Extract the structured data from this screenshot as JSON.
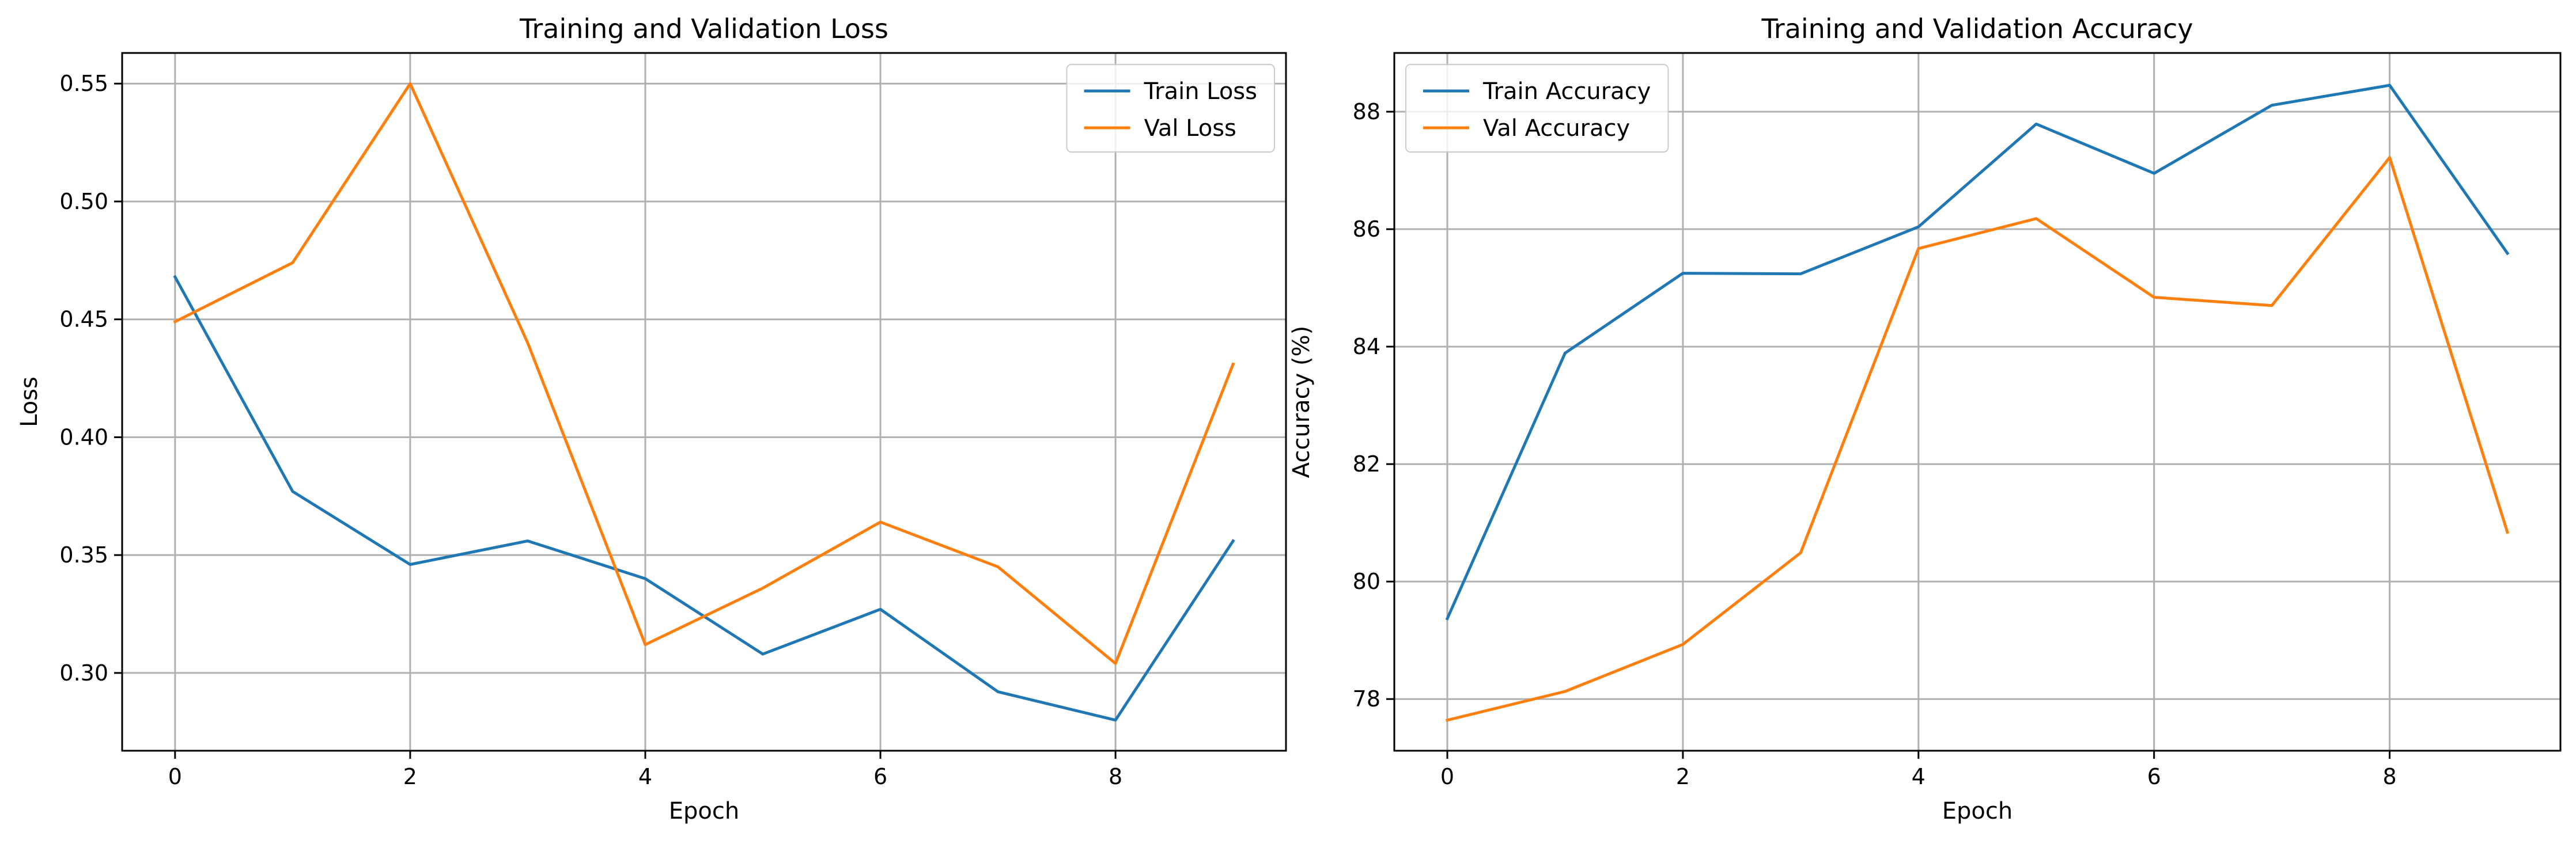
{
  "chart_data": [
    {
      "type": "line",
      "title": "Training and Validation Loss",
      "xlabel": "Epoch",
      "ylabel": "Loss",
      "x": [
        0,
        1,
        2,
        3,
        4,
        5,
        6,
        7,
        8,
        9
      ],
      "xlim": [
        -0.45,
        9.45
      ],
      "ylim": [
        0.267,
        0.563
      ],
      "xticks": [
        0,
        2,
        4,
        6,
        8
      ],
      "yticks": [
        0.3,
        0.35,
        0.4,
        0.45,
        0.5,
        0.55
      ],
      "xtick_labels": [
        "0",
        "2",
        "4",
        "6",
        "8"
      ],
      "ytick_labels": [
        "0.30",
        "0.35",
        "0.40",
        "0.45",
        "0.50",
        "0.55"
      ],
      "grid": true,
      "legend_position": "top-right",
      "series": [
        {
          "name": "Train Loss",
          "color": "#1f77b4",
          "values": [
            0.468,
            0.377,
            0.346,
            0.356,
            0.34,
            0.308,
            0.327,
            0.292,
            0.28,
            0.356
          ]
        },
        {
          "name": "Val Loss",
          "color": "#ff7f0e",
          "values": [
            0.449,
            0.474,
            0.55,
            0.44,
            0.312,
            0.336,
            0.364,
            0.345,
            0.304,
            0.431
          ]
        }
      ]
    },
    {
      "type": "line",
      "title": "Training and Validation Accuracy",
      "xlabel": "Epoch",
      "ylabel": "Accuracy (%)",
      "x": [
        0,
        1,
        2,
        3,
        4,
        5,
        6,
        7,
        8,
        9
      ],
      "xlim": [
        -0.45,
        9.45
      ],
      "ylim": [
        77.12,
        89.0
      ],
      "xticks": [
        0,
        2,
        4,
        6,
        8
      ],
      "yticks": [
        78,
        80,
        82,
        84,
        86,
        88
      ],
      "xtick_labels": [
        "0",
        "2",
        "4",
        "6",
        "8"
      ],
      "ytick_labels": [
        "78",
        "80",
        "82",
        "84",
        "86",
        "88"
      ],
      "grid": true,
      "legend_position": "top-left",
      "series": [
        {
          "name": "Train Accuracy",
          "color": "#1f77b4",
          "values": [
            79.37,
            83.89,
            85.25,
            85.24,
            86.04,
            87.79,
            86.95,
            88.11,
            88.45,
            85.59
          ]
        },
        {
          "name": "Val Accuracy",
          "color": "#ff7f0e",
          "values": [
            77.64,
            78.13,
            78.93,
            80.49,
            85.67,
            86.18,
            84.84,
            84.7,
            87.22,
            80.84
          ]
        }
      ]
    }
  ]
}
